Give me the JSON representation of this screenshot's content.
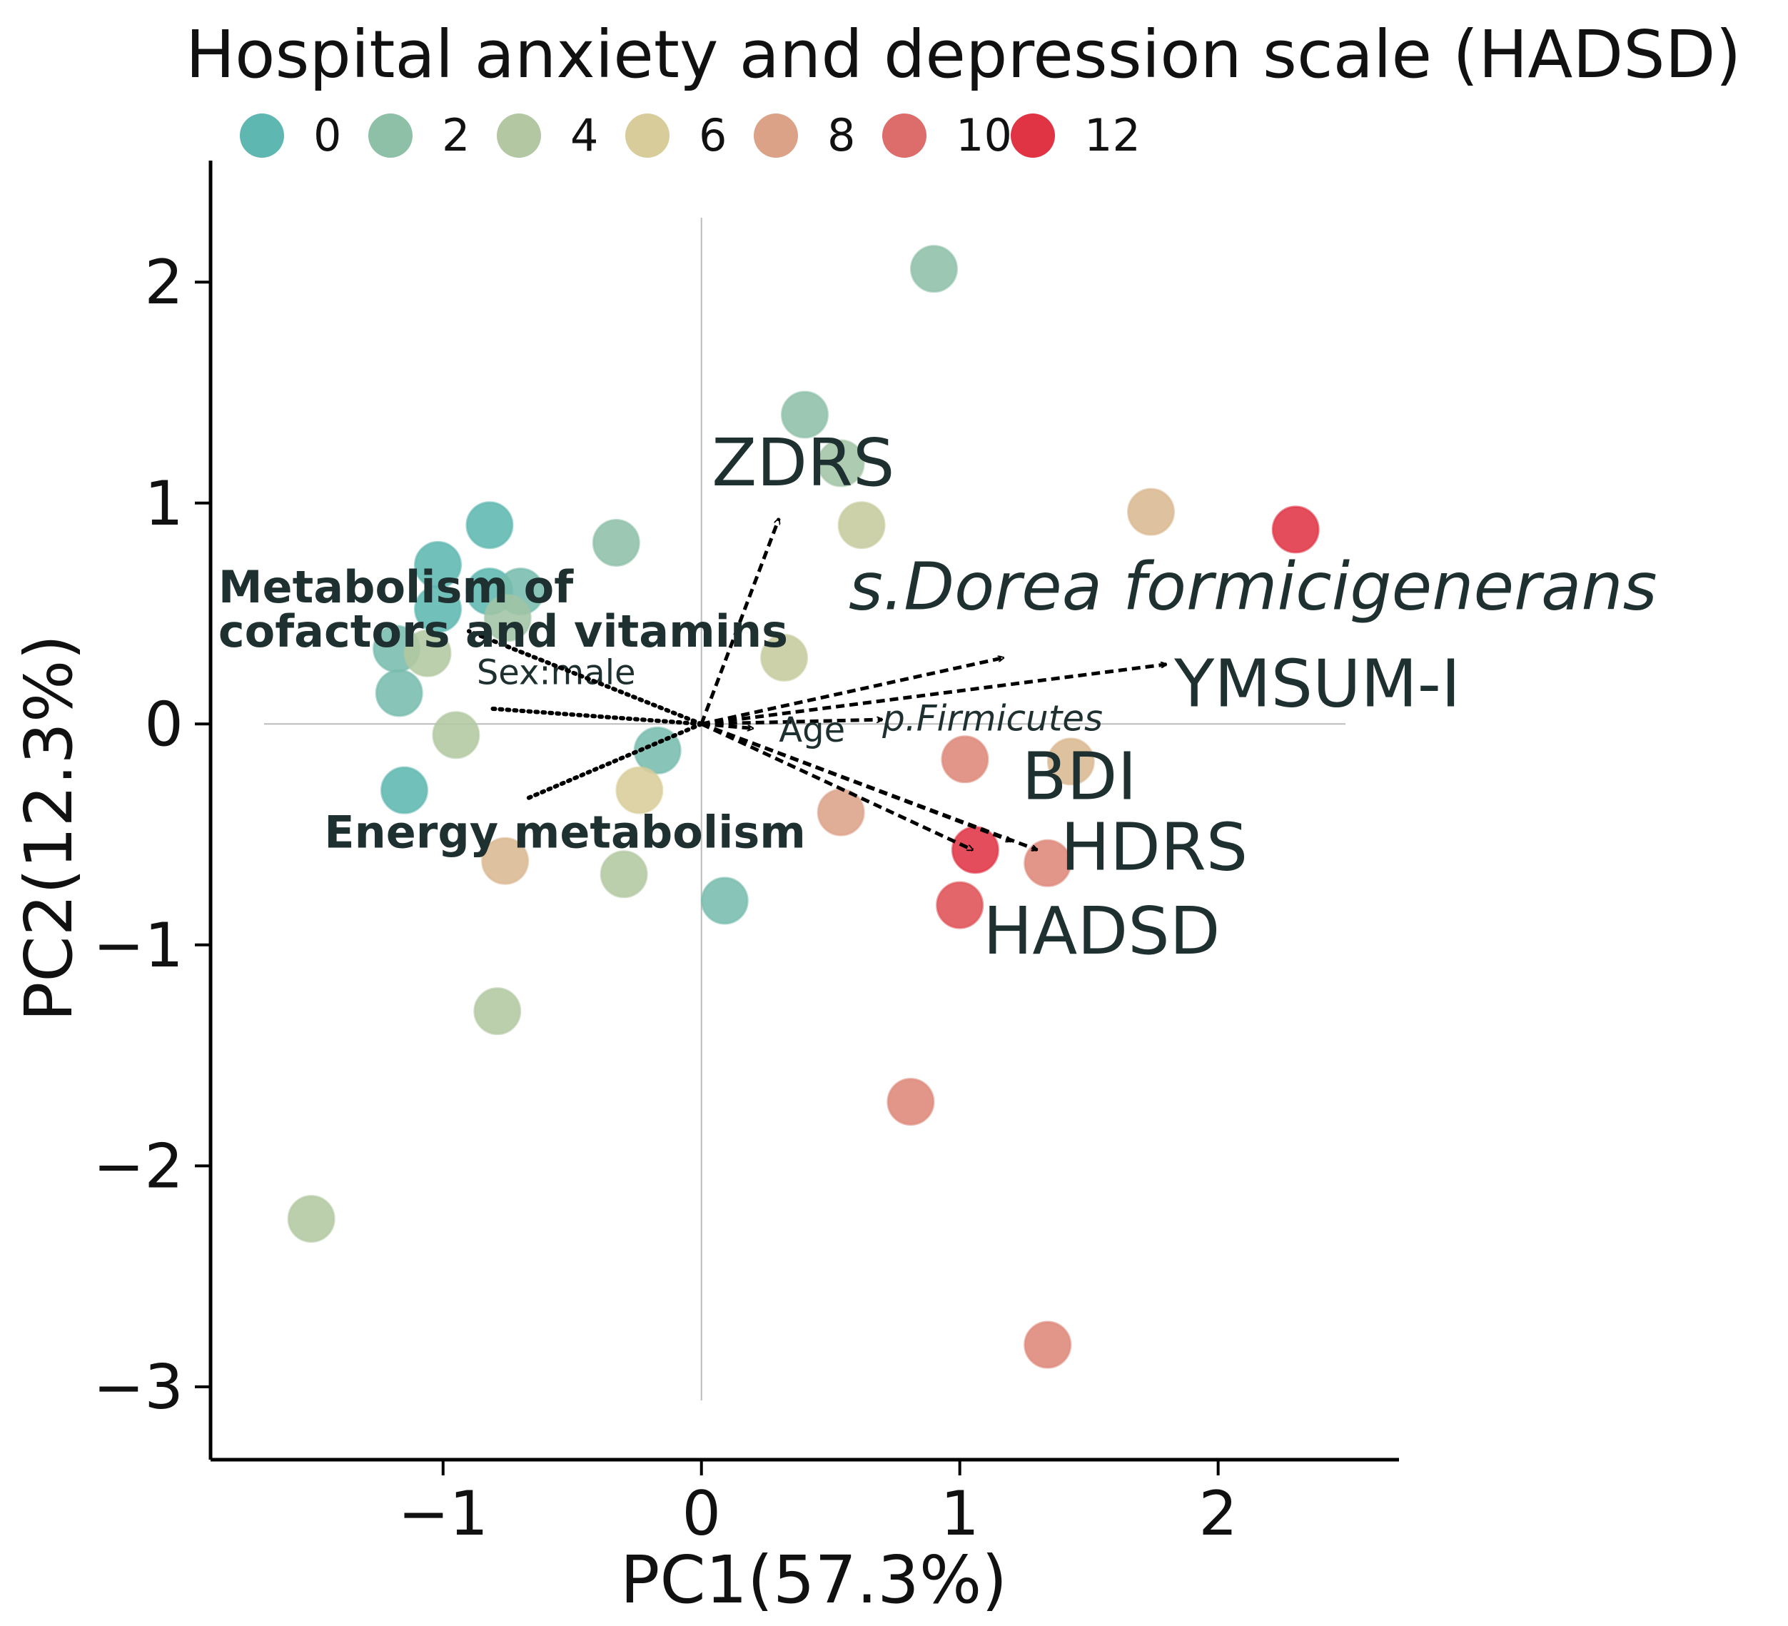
{
  "chart_data": {
    "type": "scatter",
    "subtype": "pca-biplot",
    "title": "",
    "xlabel": "PC1(57.3%)",
    "ylabel": "PC2(12.3%)",
    "xlim": [
      -1.9,
      2.7
    ],
    "ylim": [
      -3.33,
      2.55
    ],
    "xticks": [
      -1,
      0,
      1,
      2
    ],
    "yticks": [
      -3,
      -2,
      -1,
      0,
      1,
      2
    ],
    "xtick_labels": [
      "−1",
      "0",
      "1",
      "2"
    ],
    "ytick_labels": [
      "−3",
      "−2",
      "−1",
      "0",
      "1",
      "2"
    ],
    "grid": false,
    "reference_lines": {
      "x": 0,
      "y": 0
    },
    "legend": {
      "title": "Hospital anxiety and depression scale (HADSD)",
      "placement": "top",
      "entries": [
        {
          "label": "0",
          "value": 0,
          "color": "#5fb7b1"
        },
        {
          "label": "2",
          "value": 2,
          "color": "#8ec0a8"
        },
        {
          "label": "4",
          "value": 4,
          "color": "#b3c8a2"
        },
        {
          "label": "6",
          "value": 6,
          "color": "#d8cd9a"
        },
        {
          "label": "8",
          "value": 8,
          "color": "#dca288"
        },
        {
          "label": "10",
          "value": 10,
          "color": "#dd6d6a"
        },
        {
          "label": "12",
          "value": 12,
          "color": "#e03444"
        }
      ]
    },
    "points": [
      {
        "x": 0.9,
        "y": 2.06,
        "hadsd": 2
      },
      {
        "x": 0.4,
        "y": 1.4,
        "hadsd": 2
      },
      {
        "x": 0.54,
        "y": 1.18,
        "hadsd": 3
      },
      {
        "x": 0.62,
        "y": 0.9,
        "hadsd": 5
      },
      {
        "x": -0.82,
        "y": 0.9,
        "hadsd": 0
      },
      {
        "x": -0.33,
        "y": 0.82,
        "hadsd": 2
      },
      {
        "x": -1.02,
        "y": 0.72,
        "hadsd": 0
      },
      {
        "x": -0.82,
        "y": 0.6,
        "hadsd": 0
      },
      {
        "x": -0.7,
        "y": 0.6,
        "hadsd": 1
      },
      {
        "x": -0.75,
        "y": 0.48,
        "hadsd": 3
      },
      {
        "x": -1.02,
        "y": 0.52,
        "hadsd": 0
      },
      {
        "x": -1.18,
        "y": 0.34,
        "hadsd": 1
      },
      {
        "x": -1.06,
        "y": 0.32,
        "hadsd": 4
      },
      {
        "x": -1.17,
        "y": 0.14,
        "hadsd": 1
      },
      {
        "x": -0.95,
        "y": -0.05,
        "hadsd": 4
      },
      {
        "x": -1.15,
        "y": -0.3,
        "hadsd": 0
      },
      {
        "x": -0.17,
        "y": -0.12,
        "hadsd": 1
      },
      {
        "x": -0.24,
        "y": -0.3,
        "hadsd": 6
      },
      {
        "x": 0.32,
        "y": 0.3,
        "hadsd": 5
      },
      {
        "x": -0.76,
        "y": -0.62,
        "hadsd": 7
      },
      {
        "x": -0.3,
        "y": -0.68,
        "hadsd": 4
      },
      {
        "x": 0.09,
        "y": -0.8,
        "hadsd": 1
      },
      {
        "x": 0.54,
        "y": -0.4,
        "hadsd": 8
      },
      {
        "x": 1.02,
        "y": -0.16,
        "hadsd": 9
      },
      {
        "x": 1.43,
        "y": -0.17,
        "hadsd": 7
      },
      {
        "x": 1.06,
        "y": -0.57,
        "hadsd": 12
      },
      {
        "x": 1.34,
        "y": -0.63,
        "hadsd": 9
      },
      {
        "x": 1.0,
        "y": -0.82,
        "hadsd": 11
      },
      {
        "x": 1.74,
        "y": 0.96,
        "hadsd": 7
      },
      {
        "x": 2.3,
        "y": 0.88,
        "hadsd": 12
      },
      {
        "x": -0.79,
        "y": -1.3,
        "hadsd": 4
      },
      {
        "x": 0.81,
        "y": -1.71,
        "hadsd": 9
      },
      {
        "x": -1.51,
        "y": -2.24,
        "hadsd": 4
      },
      {
        "x": 1.34,
        "y": -2.81,
        "hadsd": 9
      }
    ],
    "vectors": [
      {
        "name": "ZDRS",
        "x": 0.3,
        "y": 0.93,
        "style": "dashed",
        "label": "ZDRS",
        "label_x": 0.04,
        "label_y": 1.08,
        "label_style": "large"
      },
      {
        "name": "s.Dorea formicigenerans",
        "x": 1.17,
        "y": 0.3,
        "style": "dashed",
        "label": "s.Dorea formicigenerans",
        "label_x": 0.57,
        "label_y": 0.52,
        "label_style": "italic-large"
      },
      {
        "name": "YMSUM-I",
        "x": 1.8,
        "y": 0.27,
        "style": "dashed",
        "label": "YMSUM-I",
        "label_x": 1.83,
        "label_y": 0.08,
        "label_style": "large"
      },
      {
        "name": "p.Firmicutes",
        "x": 0.7,
        "y": 0.02,
        "style": "dashed",
        "label": "p.Firmicutes",
        "label_x": 0.7,
        "label_y": -0.03,
        "label_style": "small-italic"
      },
      {
        "name": "Age",
        "x": 0.2,
        "y": -0.02,
        "style": "dashed",
        "label": "Age",
        "label_x": 0.3,
        "label_y": -0.08,
        "label_style": "small"
      },
      {
        "name": "BDI",
        "x": 1.2,
        "y": -0.53,
        "style": "dashed",
        "label": "BDI",
        "label_x": 1.24,
        "label_y": -0.34,
        "label_style": "large"
      },
      {
        "name": "HDRS",
        "x": 1.3,
        "y": -0.57,
        "style": "dashed",
        "label": "HDRS",
        "label_x": 1.39,
        "label_y": -0.66,
        "label_style": "large"
      },
      {
        "name": "HADSD",
        "x": 1.05,
        "y": -0.57,
        "style": "dashed",
        "label": "HADSD",
        "label_x": 1.09,
        "label_y": -1.04,
        "label_style": "large"
      },
      {
        "name": "Sex:male",
        "x": -0.82,
        "y": 0.07,
        "style": "dotted",
        "label": "Sex:male",
        "label_x": -0.87,
        "label_y": 0.18,
        "label_style": "small"
      },
      {
        "name": "Metabolism of cofactors and vitamins",
        "x": -0.9,
        "y": 0.42,
        "style": "dotted",
        "label": [
          "Metabolism of",
          "cofactors and vitamins"
        ],
        "label_x": -1.87,
        "label_y": 0.55,
        "label_style": "bold"
      },
      {
        "name": "Energy metabolism",
        "x": -0.68,
        "y": -0.34,
        "style": "dotted",
        "label": "Energy metabolism",
        "label_x": -1.46,
        "label_y": -0.56,
        "label_style": "bold"
      }
    ]
  }
}
